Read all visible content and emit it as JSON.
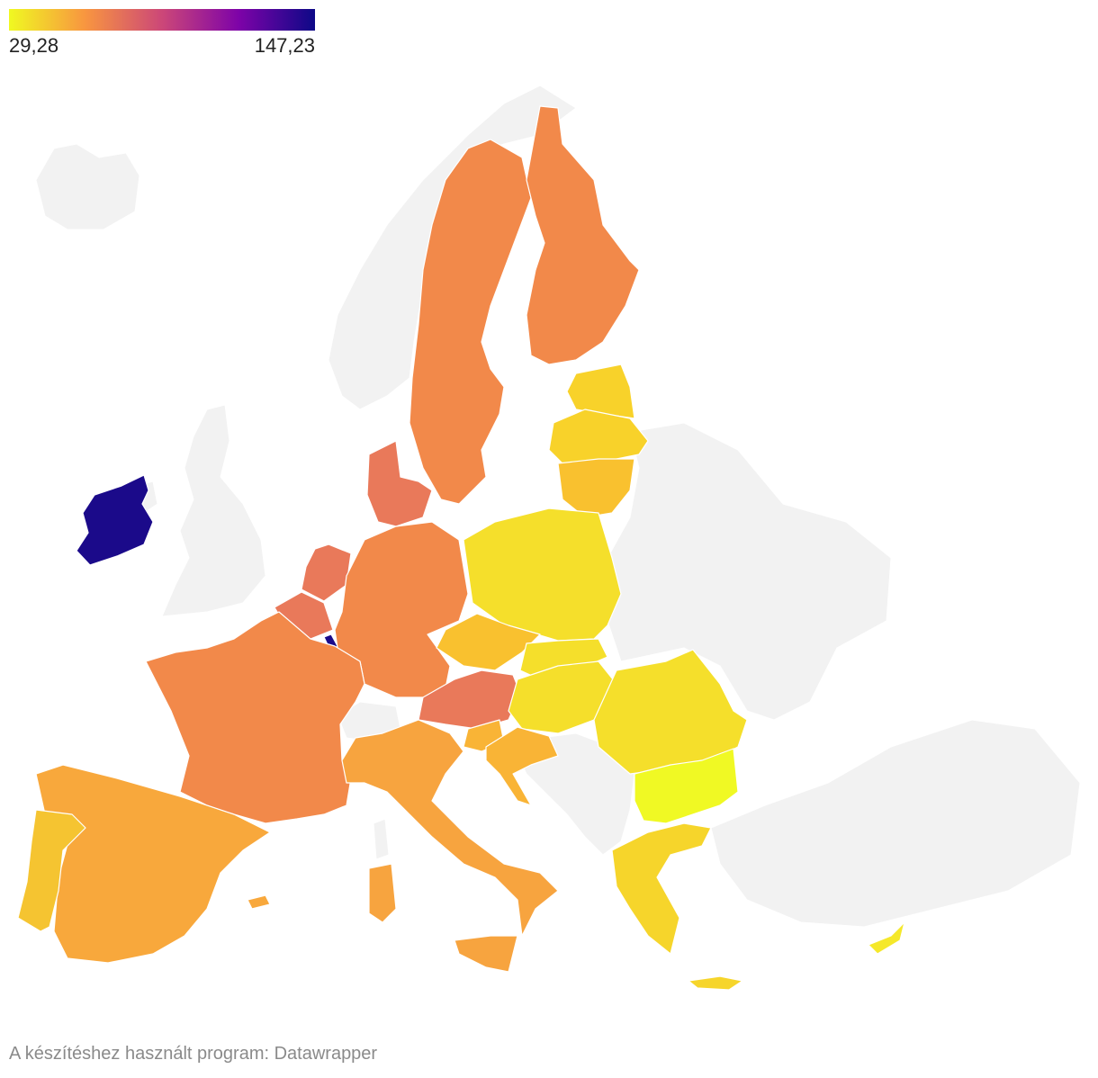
{
  "legend": {
    "min_label": "29,28",
    "max_label": "147,23",
    "min_value": 29.28,
    "max_value": 147.23,
    "gradient_colors": [
      "#f0f921",
      "#f89540",
      "#cc4778",
      "#7e03a8",
      "#0d0887"
    ]
  },
  "credit": "A készítéshez használt program: Datawrapper",
  "colors": {
    "no_data": "#f2f2f2",
    "border": "#ffffff",
    "ireland": "#1b0a8a",
    "luxembourg": "#1b0a8a",
    "west_orange": "#f2894a",
    "benelux": "#e9795a",
    "south_orange": "#f7a43f",
    "iberia": "#f8a83c",
    "portugal": "#f5c431",
    "baltic": "#f8d22a",
    "lithuania": "#f9c12f",
    "central_yellow": "#f5df2b",
    "czechia": "#f9c12f",
    "croatia": "#f9b436",
    "bulgaria": "#f0f924",
    "cyprus": "#f5e82a",
    "greece": "#f6d52b"
  },
  "countries": [
    {
      "name": "Ireland",
      "color_key": "ireland"
    },
    {
      "name": "Luxembourg",
      "color_key": "luxembourg"
    },
    {
      "name": "Sweden",
      "color_key": "west_orange"
    },
    {
      "name": "Finland",
      "color_key": "west_orange"
    },
    {
      "name": "Germany",
      "color_key": "west_orange"
    },
    {
      "name": "France",
      "color_key": "west_orange"
    },
    {
      "name": "Denmark",
      "color_key": "benelux"
    },
    {
      "name": "Netherlands",
      "color_key": "benelux"
    },
    {
      "name": "Belgium",
      "color_key": "benelux"
    },
    {
      "name": "Austria",
      "color_key": "benelux"
    },
    {
      "name": "Italy",
      "color_key": "south_orange"
    },
    {
      "name": "Spain",
      "color_key": "iberia"
    },
    {
      "name": "Portugal",
      "color_key": "portugal"
    },
    {
      "name": "Estonia",
      "color_key": "baltic"
    },
    {
      "name": "Latvia",
      "color_key": "baltic"
    },
    {
      "name": "Lithuania",
      "color_key": "lithuania"
    },
    {
      "name": "Poland",
      "color_key": "central_yellow"
    },
    {
      "name": "Czechia",
      "color_key": "czechia"
    },
    {
      "name": "Slovakia",
      "color_key": "central_yellow"
    },
    {
      "name": "Hungary",
      "color_key": "central_yellow"
    },
    {
      "name": "Slovenia",
      "color_key": "croatia"
    },
    {
      "name": "Croatia",
      "color_key": "croatia"
    },
    {
      "name": "Romania",
      "color_key": "central_yellow"
    },
    {
      "name": "Bulgaria",
      "color_key": "bulgaria"
    },
    {
      "name": "Greece",
      "color_key": "greece"
    },
    {
      "name": "Cyprus",
      "color_key": "cyprus"
    },
    {
      "name": "Malta",
      "color_key": "south_orange"
    }
  ]
}
